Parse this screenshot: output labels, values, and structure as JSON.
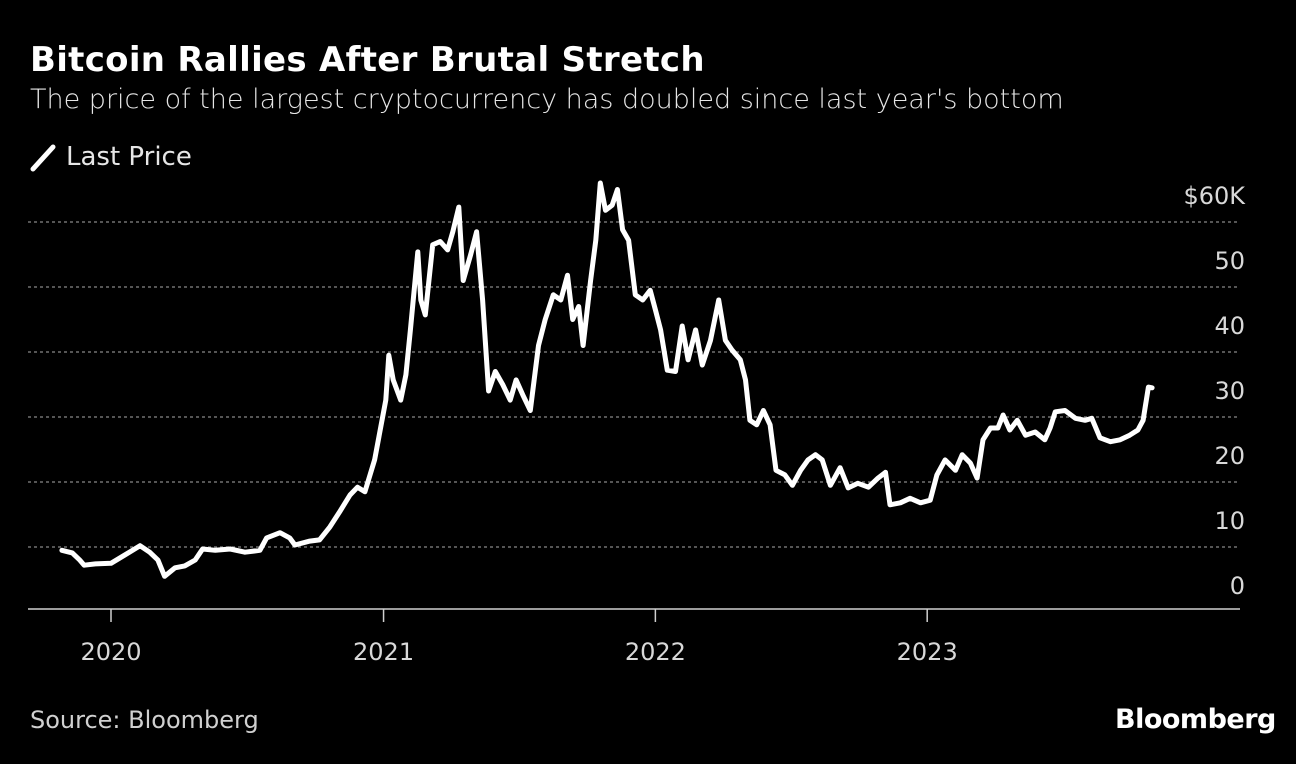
{
  "title": "Bitcoin Rallies After Brutal Stretch",
  "subtitle": "The price of the largest cryptocurrency has doubled since last year's bottom",
  "legend": {
    "label": "Last Price",
    "icon": "line-swatch-icon"
  },
  "source": "Source: Bloomberg",
  "logo": "Bloomberg",
  "colors": {
    "background": "#000000",
    "line": "#ffffff",
    "grid": "#888888"
  },
  "chart_data": {
    "type": "line",
    "title": "Bitcoin Rallies After Brutal Stretch",
    "ylabel": "",
    "xlabel": "",
    "y_unit": "$ thousands",
    "ylim": [
      0,
      60
    ],
    "y_ticks": [
      {
        "value": 60,
        "label": "$60K"
      },
      {
        "value": 50,
        "label": "50"
      },
      {
        "value": 40,
        "label": "40"
      },
      {
        "value": 30,
        "label": "30"
      },
      {
        "value": 20,
        "label": "20"
      },
      {
        "value": 10,
        "label": "10"
      },
      {
        "value": 0,
        "label": "0"
      }
    ],
    "x_ticks": [
      {
        "value": "2020-01-01",
        "label": "2020"
      },
      {
        "value": "2021-01-01",
        "label": "2021"
      },
      {
        "value": "2022-01-01",
        "label": "2022"
      },
      {
        "value": "2023-01-01",
        "label": "2023"
      }
    ],
    "grid": true,
    "legend_position": "top-left",
    "series": [
      {
        "name": "Last Price",
        "x": [
          "2019-10-27",
          "2019-11-10",
          "2019-11-20",
          "2019-11-26",
          "2019-12-11",
          "2020-01-01",
          "2020-01-20",
          "2020-02-09",
          "2020-02-22",
          "2020-03-04",
          "2020-03-13",
          "2020-03-27",
          "2020-04-09",
          "2020-04-23",
          "2020-05-03",
          "2020-05-20",
          "2020-06-09",
          "2020-06-29",
          "2020-07-19",
          "2020-07-28",
          "2020-08-15",
          "2020-08-28",
          "2020-09-04",
          "2020-09-24",
          "2020-10-07",
          "2020-10-21",
          "2020-11-03",
          "2020-11-17",
          "2020-11-27",
          "2020-12-07",
          "2020-12-20",
          "2021-01-04",
          "2021-01-08",
          "2021-01-14",
          "2021-01-24",
          "2021-01-31",
          "2021-02-06",
          "2021-02-16",
          "2021-02-20",
          "2021-02-26",
          "2021-03-08",
          "2021-03-18",
          "2021-03-28",
          "2021-04-04",
          "2021-04-12",
          "2021-04-18",
          "2021-04-28",
          "2021-05-06",
          "2021-05-14",
          "2021-05-22",
          "2021-05-31",
          "2021-06-10",
          "2021-06-20",
          "2021-06-28",
          "2021-07-07",
          "2021-07-17",
          "2021-07-28",
          "2021-08-06",
          "2021-08-17",
          "2021-08-27",
          "2021-09-05",
          "2021-09-12",
          "2021-09-20",
          "2021-09-26",
          "2021-10-06",
          "2021-10-13",
          "2021-10-19",
          "2021-10-26",
          "2021-11-04",
          "2021-11-11",
          "2021-11-18",
          "2021-11-26",
          "2021-12-05",
          "2021-12-15",
          "2021-12-25",
          "2022-01-01",
          "2022-01-08",
          "2022-01-17",
          "2022-01-28",
          "2022-02-06",
          "2022-02-14",
          "2022-02-24",
          "2022-03-05",
          "2022-03-16",
          "2022-03-27",
          "2022-04-05",
          "2022-04-14",
          "2022-04-25",
          "2022-05-02",
          "2022-05-08",
          "2022-05-17",
          "2022-05-26",
          "2022-06-04",
          "2022-06-12",
          "2022-06-24",
          "2022-07-04",
          "2022-07-15",
          "2022-07-25",
          "2022-08-04",
          "2022-08-13",
          "2022-08-24",
          "2022-09-06",
          "2022-09-17",
          "2022-09-30",
          "2022-10-14",
          "2022-10-27",
          "2022-11-06",
          "2022-11-12",
          "2022-11-26",
          "2022-12-09",
          "2022-12-23",
          "2023-01-05",
          "2023-01-14",
          "2023-01-25",
          "2023-02-08",
          "2023-02-17",
          "2023-02-28",
          "2023-03-09",
          "2023-03-17",
          "2023-03-27",
          "2023-04-06",
          "2023-04-13",
          "2023-04-22",
          "2023-05-02",
          "2023-05-13",
          "2023-05-26",
          "2023-06-08",
          "2023-06-15",
          "2023-06-22",
          "2023-07-05",
          "2023-07-19",
          "2023-08-01",
          "2023-08-10",
          "2023-08-21",
          "2023-09-04",
          "2023-09-17",
          "2023-09-30",
          "2023-10-11",
          "2023-10-18",
          "2023-10-25",
          "2023-10-30"
        ],
        "values": [
          9.5,
          9.1,
          8.0,
          7.2,
          7.4,
          7.5,
          8.8,
          10.2,
          9.2,
          8.0,
          5.5,
          6.8,
          7.1,
          8.0,
          9.7,
          9.5,
          9.7,
          9.2,
          9.5,
          11.4,
          12.2,
          11.4,
          10.3,
          10.9,
          11.1,
          13.1,
          15.4,
          18.0,
          19.2,
          18.5,
          23.4,
          32.6,
          39.5,
          35.7,
          32.6,
          36.5,
          43.4,
          55.4,
          48.0,
          45.7,
          56.5,
          57.0,
          55.7,
          58.5,
          62.3,
          51.0,
          55.0,
          58.5,
          48.0,
          34.0,
          37.0,
          35.0,
          32.6,
          35.7,
          33.4,
          31.0,
          41.0,
          45.0,
          48.8,
          48.0,
          51.8,
          45.0,
          47.0,
          41.0,
          51.0,
          57.2,
          66.0,
          61.8,
          62.6,
          65.0,
          58.8,
          57.2,
          48.8,
          48.0,
          49.5,
          46.5,
          43.4,
          37.2,
          37.0,
          44.0,
          38.8,
          43.4,
          38.0,
          41.8,
          48.0,
          41.8,
          40.3,
          38.8,
          35.7,
          29.5,
          28.8,
          31.0,
          28.8,
          21.8,
          21.1,
          19.5,
          21.8,
          23.4,
          24.2,
          23.4,
          19.5,
          22.2,
          19.1,
          19.8,
          19.2,
          20.6,
          21.5,
          16.5,
          16.8,
          17.5,
          16.8,
          17.2,
          21.1,
          23.4,
          21.8,
          24.2,
          22.9,
          20.6,
          26.5,
          28.3,
          28.3,
          30.3,
          28.0,
          29.5,
          27.2,
          27.7,
          26.5,
          28.3,
          30.8,
          31.0,
          29.8,
          29.5,
          29.8,
          26.8,
          26.2,
          26.5,
          27.2,
          28.0,
          29.5,
          34.6,
          34.5
        ]
      }
    ]
  }
}
